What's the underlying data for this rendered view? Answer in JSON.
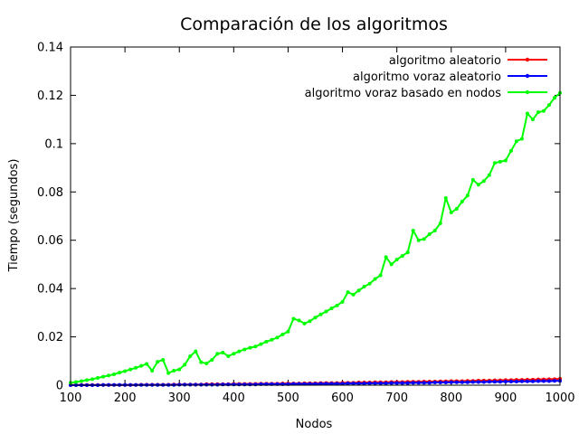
{
  "chart_data": {
    "type": "line",
    "title": "Comparación de los algoritmos",
    "xlabel": "Nodos",
    "ylabel": "Tiempo (segundos)",
    "xlim": [
      100,
      1000
    ],
    "ylim": [
      0,
      0.14
    ],
    "xticks": [
      100,
      200,
      300,
      400,
      500,
      600,
      700,
      800,
      900,
      1000
    ],
    "xtick_labels": [
      "100",
      "200",
      "300",
      "400",
      "500",
      "600",
      "700",
      "800",
      "900",
      "1000"
    ],
    "yticks": [
      0,
      0.02,
      0.04,
      0.06,
      0.08,
      0.1,
      0.12,
      0.14
    ],
    "ytick_labels": [
      "0",
      "0.02",
      "0.04",
      "0.06",
      "0.08",
      "0.1",
      "0.12",
      "0.14"
    ],
    "grid": false,
    "legend_position": "top-right",
    "series": [
      {
        "name": "algoritmo aleatorio",
        "color": "#ff0000",
        "x": [
          100,
          110,
          120,
          130,
          140,
          150,
          160,
          170,
          180,
          190,
          200,
          210,
          220,
          230,
          240,
          250,
          260,
          270,
          280,
          290,
          300,
          310,
          320,
          330,
          340,
          350,
          360,
          370,
          380,
          390,
          400,
          410,
          420,
          430,
          440,
          450,
          460,
          470,
          480,
          490,
          500,
          510,
          520,
          530,
          540,
          550,
          560,
          570,
          580,
          590,
          600,
          610,
          620,
          630,
          640,
          650,
          660,
          670,
          680,
          690,
          700,
          710,
          720,
          730,
          740,
          750,
          760,
          770,
          780,
          790,
          800,
          810,
          820,
          830,
          840,
          850,
          860,
          870,
          880,
          890,
          900,
          910,
          920,
          930,
          940,
          950,
          960,
          970,
          980,
          990,
          1000
        ],
        "y": [
          0.0001,
          0.0001,
          0.0001,
          0.0001,
          0.0001,
          0.0001,
          0.0001,
          0.0001,
          0.0001,
          0.0001,
          0.0001,
          0.0001,
          0.0001,
          0.0002,
          0.0002,
          0.0002,
          0.0002,
          0.0002,
          0.0002,
          0.0003,
          0.0003,
          0.0003,
          0.0003,
          0.0003,
          0.0003,
          0.0004,
          0.0004,
          0.0004,
          0.0004,
          0.0004,
          0.0005,
          0.0005,
          0.0005,
          0.0005,
          0.0005,
          0.0006,
          0.0006,
          0.0006,
          0.0006,
          0.0007,
          0.0007,
          0.0007,
          0.0007,
          0.0008,
          0.0008,
          0.0008,
          0.0009,
          0.0009,
          0.0009,
          0.0009,
          0.001,
          0.001,
          0.001,
          0.0011,
          0.0011,
          0.0011,
          0.0012,
          0.0012,
          0.0012,
          0.0013,
          0.0013,
          0.0013,
          0.0014,
          0.0014,
          0.0014,
          0.0015,
          0.0015,
          0.0015,
          0.0016,
          0.0016,
          0.0017,
          0.0017,
          0.0017,
          0.0018,
          0.0018,
          0.0019,
          0.0019,
          0.0019,
          0.002,
          0.002,
          0.0021,
          0.0021,
          0.0022,
          0.0022,
          0.0023,
          0.0023,
          0.0024,
          0.0024,
          0.0025,
          0.0025,
          0.0026
        ]
      },
      {
        "name": "algoritmo voraz aleatorio",
        "color": "#0000ff",
        "x": [
          100,
          110,
          120,
          130,
          140,
          150,
          160,
          170,
          180,
          190,
          200,
          210,
          220,
          230,
          240,
          250,
          260,
          270,
          280,
          290,
          300,
          310,
          320,
          330,
          340,
          350,
          360,
          370,
          380,
          390,
          400,
          410,
          420,
          430,
          440,
          450,
          460,
          470,
          480,
          490,
          500,
          510,
          520,
          530,
          540,
          550,
          560,
          570,
          580,
          590,
          600,
          610,
          620,
          630,
          640,
          650,
          660,
          670,
          680,
          690,
          700,
          710,
          720,
          730,
          740,
          750,
          760,
          770,
          780,
          790,
          800,
          810,
          820,
          830,
          840,
          850,
          860,
          870,
          880,
          890,
          900,
          910,
          920,
          930,
          940,
          950,
          960,
          970,
          980,
          990,
          1000
        ],
        "y": [
          0.0,
          0.0,
          0.0,
          0.0,
          0.0,
          0.0,
          0.0001,
          0.0001,
          0.0001,
          0.0001,
          0.0001,
          0.0001,
          0.0001,
          0.0001,
          0.0001,
          0.0001,
          0.0001,
          0.0001,
          0.0001,
          0.0001,
          0.0002,
          0.0002,
          0.0002,
          0.0002,
          0.0002,
          0.0002,
          0.0002,
          0.0002,
          0.0003,
          0.0003,
          0.0003,
          0.0003,
          0.0003,
          0.0003,
          0.0003,
          0.0004,
          0.0004,
          0.0004,
          0.0004,
          0.0004,
          0.0004,
          0.0005,
          0.0005,
          0.0005,
          0.0005,
          0.0005,
          0.0006,
          0.0006,
          0.0006,
          0.0006,
          0.0006,
          0.0007,
          0.0007,
          0.0007,
          0.0007,
          0.0008,
          0.0008,
          0.0008,
          0.0008,
          0.0009,
          0.0009,
          0.0009,
          0.0009,
          0.001,
          0.001,
          0.001,
          0.001,
          0.0011,
          0.0011,
          0.0011,
          0.0012,
          0.0012,
          0.0012,
          0.0012,
          0.0013,
          0.0013,
          0.0013,
          0.0014,
          0.0014,
          0.0014,
          0.0015,
          0.0015,
          0.0015,
          0.0016,
          0.0016,
          0.0016,
          0.0017,
          0.0017,
          0.0017,
          0.0018,
          0.0018
        ]
      },
      {
        "name": "algoritmo voraz basado en nodos",
        "color": "#00ff00",
        "x": [
          100,
          110,
          120,
          130,
          140,
          150,
          160,
          170,
          180,
          190,
          200,
          210,
          220,
          230,
          240,
          250,
          260,
          270,
          280,
          290,
          300,
          310,
          320,
          330,
          340,
          350,
          360,
          370,
          380,
          390,
          400,
          410,
          420,
          430,
          440,
          450,
          460,
          470,
          480,
          490,
          500,
          510,
          520,
          530,
          540,
          550,
          560,
          570,
          580,
          590,
          600,
          610,
          620,
          630,
          640,
          650,
          660,
          670,
          680,
          690,
          700,
          710,
          720,
          730,
          740,
          750,
          760,
          770,
          780,
          790,
          800,
          810,
          820,
          830,
          840,
          850,
          860,
          870,
          880,
          890,
          900,
          910,
          920,
          930,
          940,
          950,
          960,
          970,
          980,
          990,
          1000
        ],
        "y": [
          0.001,
          0.0013,
          0.0017,
          0.0021,
          0.0025,
          0.003,
          0.0035,
          0.004,
          0.0045,
          0.0052,
          0.0058,
          0.0065,
          0.0072,
          0.008,
          0.0088,
          0.006,
          0.0097,
          0.0105,
          0.005,
          0.006,
          0.0065,
          0.0085,
          0.012,
          0.014,
          0.0095,
          0.009,
          0.0105,
          0.013,
          0.0135,
          0.012,
          0.013,
          0.014,
          0.0148,
          0.0155,
          0.016,
          0.017,
          0.018,
          0.0188,
          0.0197,
          0.021,
          0.0222,
          0.0275,
          0.0268,
          0.0255,
          0.0265,
          0.028,
          0.0293,
          0.0305,
          0.0318,
          0.033,
          0.0345,
          0.0385,
          0.0375,
          0.0392,
          0.0408,
          0.042,
          0.044,
          0.0455,
          0.053,
          0.05,
          0.052,
          0.0535,
          0.055,
          0.064,
          0.06,
          0.0605,
          0.0625,
          0.064,
          0.067,
          0.0775,
          0.0715,
          0.073,
          0.076,
          0.0785,
          0.085,
          0.083,
          0.0845,
          0.087,
          0.092,
          0.0925,
          0.093,
          0.097,
          0.101,
          0.102,
          0.1125,
          0.11,
          0.113,
          0.1135,
          0.116,
          0.119,
          0.121
        ]
      }
    ]
  }
}
